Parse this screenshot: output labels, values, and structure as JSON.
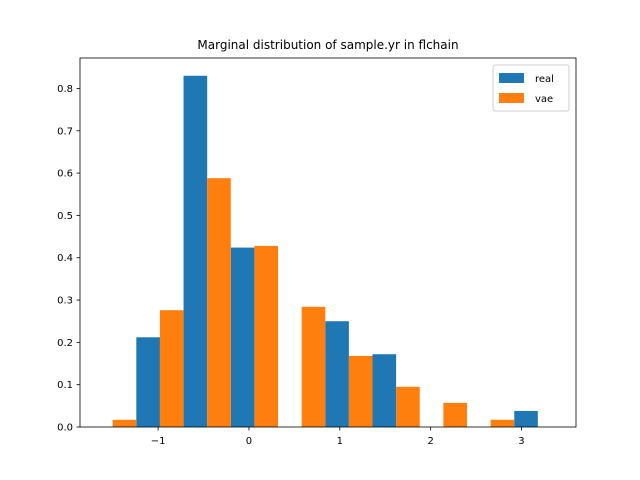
{
  "chart_data": {
    "type": "bar",
    "title": "Marginal distribution of sample.yr in flchain",
    "xlabel": "",
    "ylabel": "",
    "xlim": [
      -1.86,
      3.6
    ],
    "ylim": [
      0,
      0.872
    ],
    "xticks": [
      -1,
      0,
      1,
      2,
      3
    ],
    "xtick_labels": [
      "−1",
      "0",
      "1",
      "2",
      "3"
    ],
    "yticks": [
      0.0,
      0.1,
      0.2,
      0.3,
      0.4,
      0.5,
      0.6,
      0.7,
      0.8
    ],
    "ytick_labels": [
      "0.0",
      "0.1",
      "0.2",
      "0.3",
      "0.4",
      "0.5",
      "0.6",
      "0.7",
      "0.8"
    ],
    "grid": false,
    "legend_position": "top-right",
    "bin_edges": [
      -1.76,
      -1.24,
      -0.72,
      -0.2,
      0.32,
      0.84,
      1.36,
      1.88,
      2.4,
      2.92,
      3.44
    ],
    "series": [
      {
        "name": "real",
        "color": "#1f77b4",
        "values": [
          0,
          0.212,
          0.83,
          0.424,
          0,
          0.25,
          0.172,
          0,
          0,
          0.038
        ]
      },
      {
        "name": "vae",
        "color": "#ff7f0e",
        "values": [
          0.017,
          0.276,
          0.588,
          0.428,
          0.284,
          0.168,
          0.095,
          0.057,
          0.017,
          0
        ]
      }
    ]
  }
}
